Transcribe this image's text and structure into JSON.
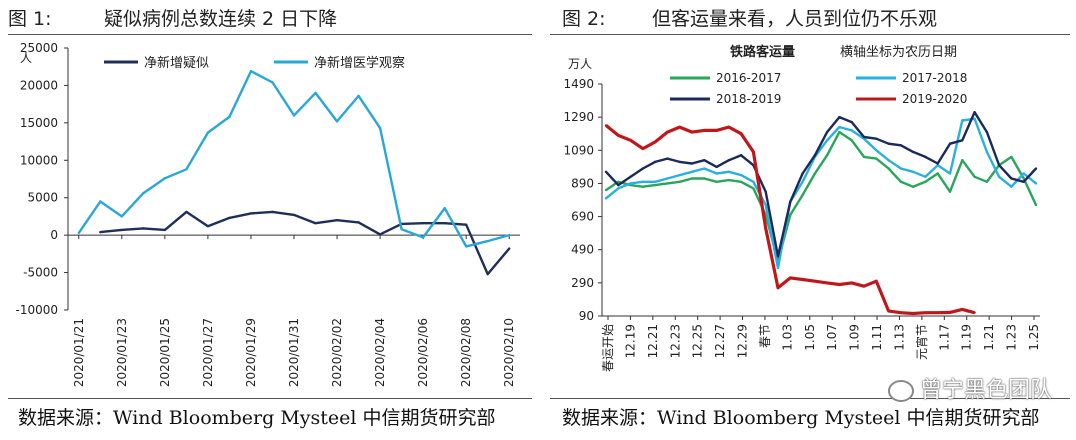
{
  "left": {
    "fig_label": "图 1:",
    "title": "疑似病例总数连续 2 日下降",
    "source": "数据来源：Wind Bloomberg Mysteel 中信期货研究部"
  },
  "right": {
    "fig_label": "图 2:",
    "title": "但客运量来看，人员到位仍不乐观",
    "source": "数据来源：Wind Bloomberg Mysteel 中信期货研究部",
    "watermark": "曾宁黑色团队"
  },
  "chart_data": [
    {
      "type": "line",
      "ylabel": "人",
      "ylim": [
        -10000,
        25000
      ],
      "yticks": [
        25000,
        20000,
        15000,
        10000,
        5000,
        0,
        -5000,
        -10000
      ],
      "x_start": "2020/01/21",
      "x_tick_labels": [
        "2020/01/21",
        "2020/01/23",
        "2020/01/25",
        "2020/01/27",
        "2020/01/29",
        "2020/01/31",
        "2020/02/02",
        "2020/02/04",
        "2020/02/06",
        "2020/02/08",
        "2020/02/10"
      ],
      "colors": {
        "净新增疑似": "#1f2f5a",
        "净新增医学观察": "#2aa7d6"
      },
      "legend": [
        "净新增疑似",
        "净新增医学观察"
      ],
      "series": [
        {
          "name": "净新增疑似",
          "color": "#1f2f5a",
          "values": [
            null,
            400,
            700,
            900,
            700,
            3100,
            1200,
            2300,
            2900,
            3100,
            2700,
            1600,
            2000,
            1700,
            100,
            1500,
            1600,
            1600,
            1400,
            -5200,
            -1800
          ]
        },
        {
          "name": "净新增医学观察",
          "color": "#2aa7d6",
          "values": [
            300,
            4500,
            2500,
            5600,
            7600,
            8800,
            13700,
            15800,
            21900,
            20400,
            16000,
            19000,
            15200,
            18600,
            14300,
            800,
            -300,
            3600,
            -1500,
            -800,
            0
          ]
        }
      ]
    },
    {
      "type": "line",
      "title": "铁路客运量",
      "subtitle": "横轴坐标为农历日期",
      "ylabel": "万人",
      "ylim": [
        90,
        1490
      ],
      "yticks": [
        1490,
        1290,
        1090,
        890,
        690,
        490,
        290,
        90
      ],
      "x_tick_labels": [
        "春运开始",
        "12.19",
        "12.21",
        "12.23",
        "12.25",
        "12.27",
        "12.29",
        "春节",
        "1.03",
        "1.05",
        "1.07",
        "1.09",
        "1.11",
        "1.13",
        "元宵节",
        "1.17",
        "1.19",
        "1.21",
        "1.23",
        "1.25"
      ],
      "legend_position": "top",
      "series": [
        {
          "name": "2016-2017",
          "color": "#2aa65a",
          "values": [
            850,
            900,
            880,
            870,
            880,
            890,
            900,
            920,
            920,
            900,
            910,
            900,
            860,
            700,
            420,
            700,
            820,
            950,
            1060,
            1200,
            1150,
            1050,
            1040,
            980,
            900,
            870,
            900,
            950,
            840,
            1030,
            930,
            900,
            1000,
            1050,
            920,
            760
          ]
        },
        {
          "name": "2017-2018",
          "color": "#2ab0e0",
          "values": [
            800,
            860,
            890,
            900,
            900,
            920,
            940,
            960,
            980,
            950,
            960,
            940,
            900,
            760,
            380,
            780,
            900,
            1050,
            1150,
            1230,
            1210,
            1160,
            1090,
            1030,
            980,
            960,
            930,
            1000,
            950,
            1270,
            1280,
            1080,
            930,
            870,
            950,
            890
          ]
        },
        {
          "name": "2018-2019",
          "color": "#1a2a5a",
          "values": [
            960,
            880,
            930,
            980,
            1020,
            1040,
            1020,
            1010,
            1030,
            990,
            1030,
            1060,
            1000,
            840,
            450,
            780,
            950,
            1060,
            1200,
            1290,
            1260,
            1170,
            1160,
            1130,
            1120,
            1080,
            1050,
            1010,
            1130,
            1150,
            1320,
            1200,
            1000,
            920,
            900,
            980
          ]
        },
        {
          "name": "2019-2020",
          "color": "#c0171b",
          "values": [
            1240,
            1180,
            1150,
            1100,
            1140,
            1200,
            1230,
            1200,
            1210,
            1210,
            1230,
            1190,
            1080,
            620,
            260,
            320,
            310,
            300,
            290,
            280,
            290,
            270,
            300,
            120,
            110,
            105,
            110,
            110,
            112,
            130,
            110,
            null,
            null,
            null,
            null,
            null
          ]
        }
      ]
    }
  ]
}
